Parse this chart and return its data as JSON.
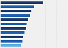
{
  "values": [
    26.5,
    20.8,
    19.2,
    18.5,
    17.3,
    16.5,
    15.8,
    15.0,
    14.2,
    13.5,
    12.8
  ],
  "bar_colors": [
    "#1a3a6b",
    "#1c5fad",
    "#1a3a6b",
    "#1c5fad",
    "#1a3a6b",
    "#1c5fad",
    "#1a3a6b",
    "#1c5fad",
    "#1a3a6b",
    "#1c5fad",
    "#5aaee0"
  ],
  "xlim": [
    0,
    42
  ],
  "background_color": "#f0f0f0",
  "bar_height": 0.6,
  "n_bars": 11
}
